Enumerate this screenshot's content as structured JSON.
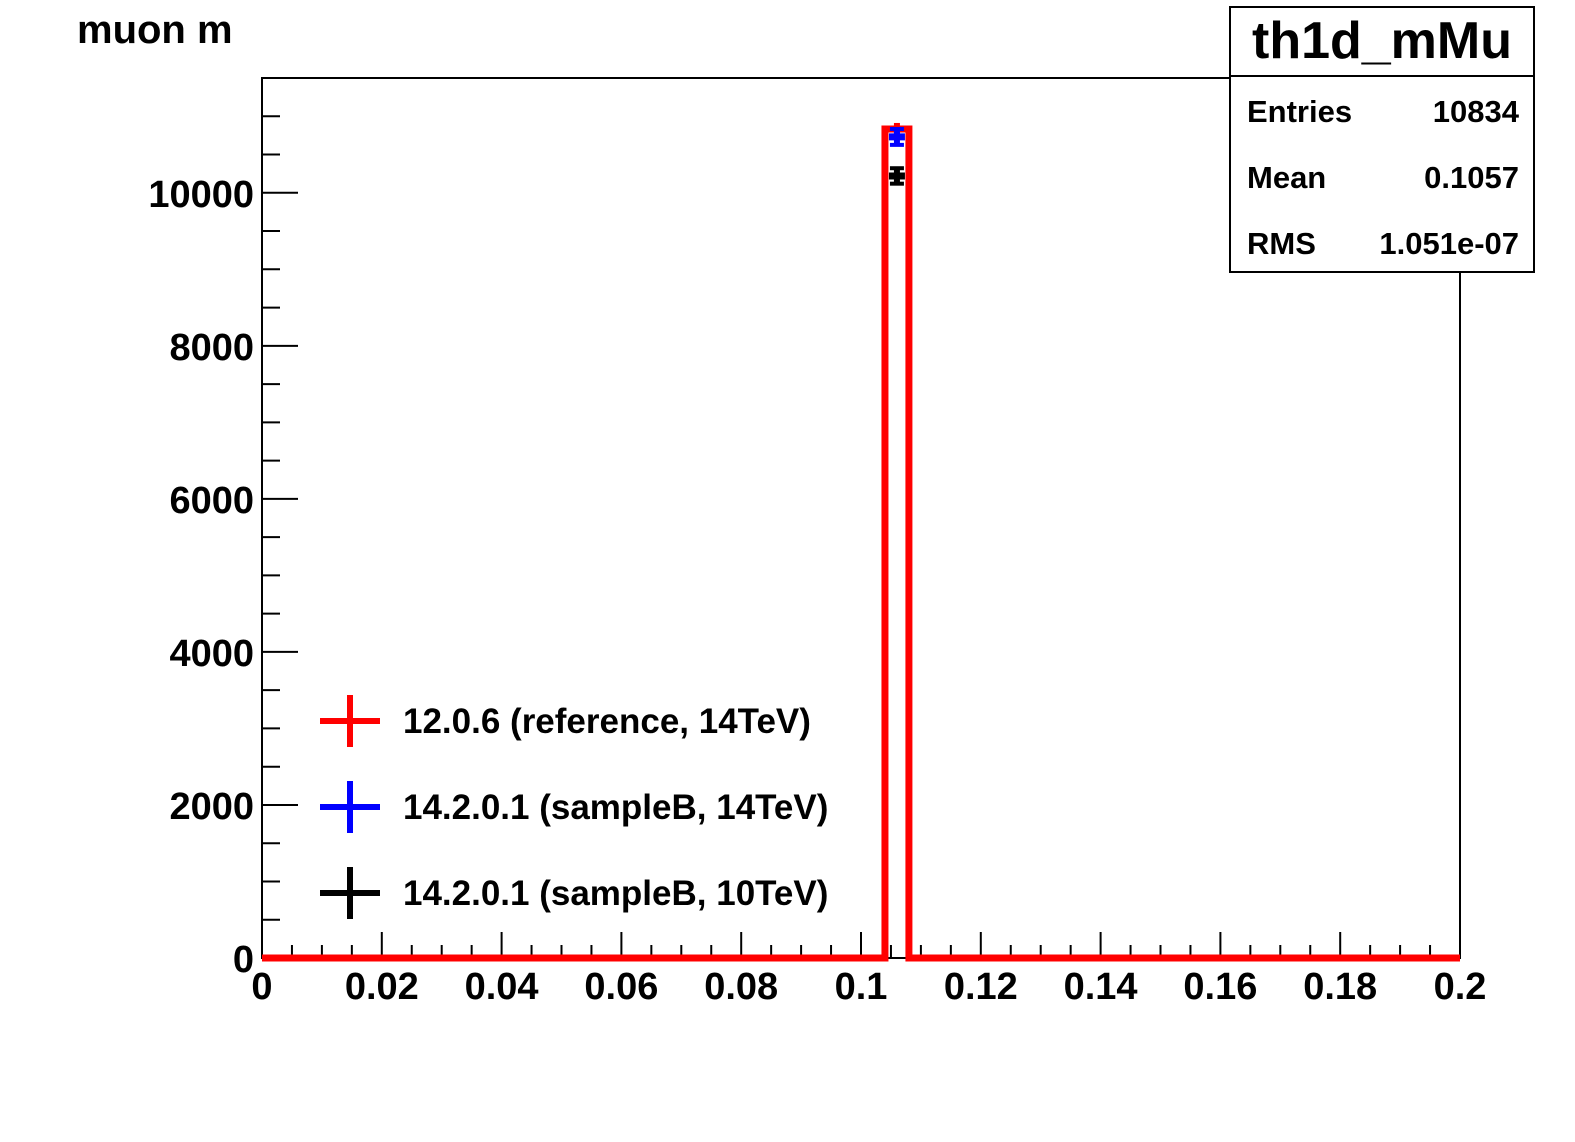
{
  "chart_data": {
    "type": "histogram",
    "title": "muon m",
    "xlabel": "",
    "ylabel": "",
    "xlim": [
      0,
      0.2
    ],
    "ylim": [
      0,
      11500
    ],
    "x_ticks": [
      "0",
      "0.02",
      "0.04",
      "0.06",
      "0.08",
      "0.1",
      "0.12",
      "0.14",
      "0.16",
      "0.18",
      "0.2"
    ],
    "y_ticks": [
      "0",
      "2000",
      "4000",
      "6000",
      "8000",
      "10000"
    ],
    "bin_width": 0.004,
    "series": [
      {
        "name": "12.0.6 (reference, 14TeV)",
        "color": "#ff0000",
        "style": "histogram-line",
        "bins": [
          {
            "x_low": 0.104,
            "x_high": 0.108,
            "value": 10834
          }
        ]
      },
      {
        "name": "14.2.0.1 (sampleB, 14TeV)",
        "color": "#0000ff",
        "style": "points-with-errors",
        "points": [
          {
            "x": 0.106,
            "y": 10730,
            "err": 104
          }
        ]
      },
      {
        "name": "14.2.0.1 (sampleB, 10TeV)",
        "color": "#000000",
        "style": "points-with-errors",
        "points": [
          {
            "x": 0.106,
            "y": 10220,
            "err": 101
          }
        ]
      }
    ],
    "legend_position": "bottom-left",
    "stats_box": {
      "name": "th1d_mMu",
      "rows": [
        {
          "key": "Entries",
          "value": "10834"
        },
        {
          "key": "Mean",
          "value": "0.1057"
        },
        {
          "key": "RMS",
          "value": "1.051e-07"
        }
      ]
    }
  }
}
